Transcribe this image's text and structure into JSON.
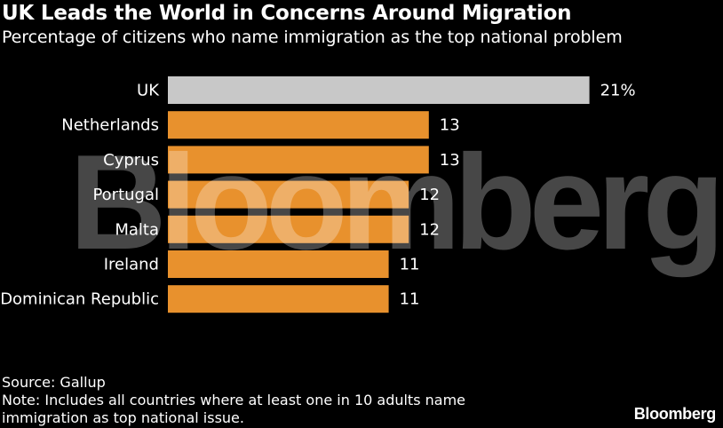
{
  "title": "UK Leads the World in Concerns Around Migration",
  "subtitle": "Percentage of citizens who name immigration as the top national problem",
  "watermark": "Bloomberg",
  "source": "Source: Gallup",
  "note_line1": "Note: Includes all countries where at least one in 10 adults name",
  "note_line2": "immigration as top national issue.",
  "brand": "Bloomberg",
  "colors": {
    "highlight": "#c8c8c8",
    "bar": "#e8912d",
    "background": "#000000"
  },
  "chart_data": {
    "type": "bar",
    "orientation": "horizontal",
    "title": "UK Leads the World in Concerns Around Migration",
    "subtitle": "Percentage of citizens who name immigration as the top national problem",
    "categories": [
      "UK",
      "Netherlands",
      "Cyprus",
      "Portugal",
      "Malta",
      "Ireland",
      "Dominican Republic"
    ],
    "values": [
      21,
      13,
      13,
      12,
      12,
      11,
      11
    ],
    "value_labels": [
      "21%",
      "13",
      "13",
      "12",
      "12",
      "11",
      "11"
    ],
    "highlighted": [
      "UK"
    ],
    "xlim": [
      0,
      21
    ],
    "grid": false,
    "legend": "none"
  }
}
